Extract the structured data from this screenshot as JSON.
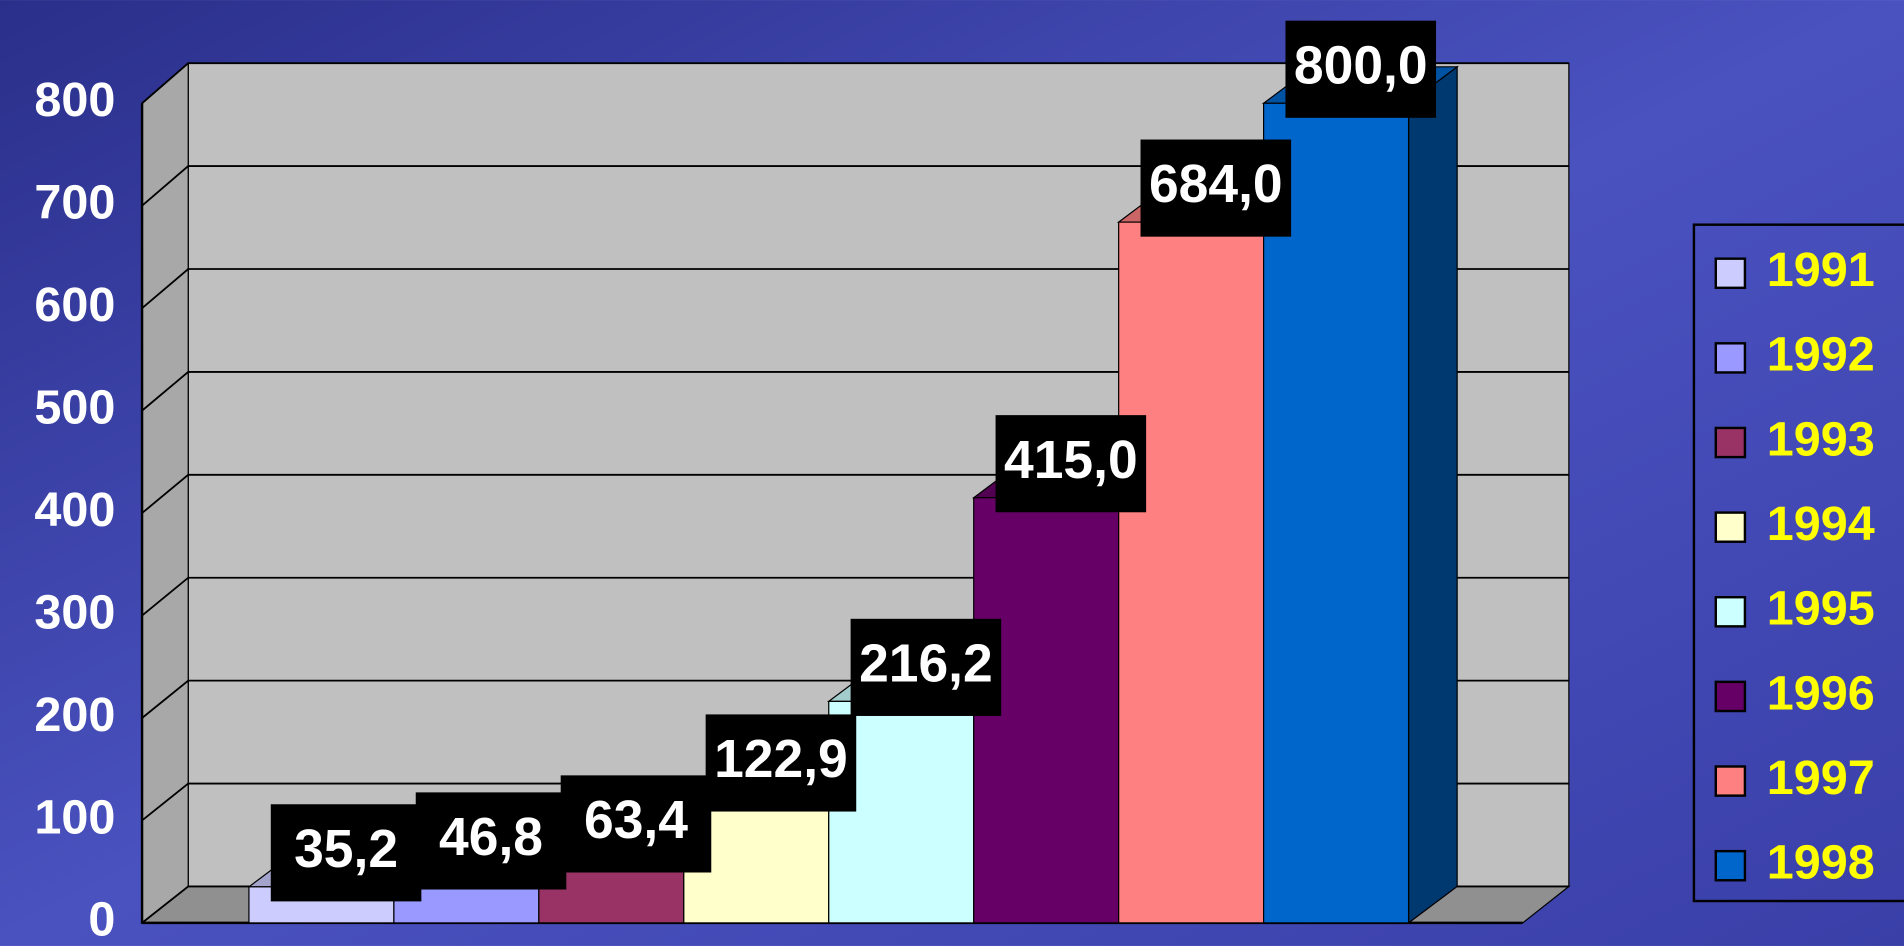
{
  "chart_data": {
    "type": "bar3d",
    "categories": [
      "1991",
      "1992",
      "1993",
      "1994",
      "1995",
      "1996",
      "1997",
      "1998"
    ],
    "values": [
      35.2,
      46.8,
      63.4,
      122.9,
      216.2,
      415.0,
      684.0,
      800.0
    ],
    "value_labels": [
      "35,2",
      "46,8",
      "63,4",
      "122,9",
      "216,2",
      "415,0",
      "684,0",
      "800,0"
    ],
    "colors": [
      "#ccccff",
      "#9999ff",
      "#993366",
      "#ffffcc",
      "#ccffff",
      "#660066",
      "#ff8080",
      "#0066cc"
    ],
    "ylim": [
      0,
      800
    ],
    "yticks": [
      0,
      100,
      200,
      300,
      400,
      500,
      600,
      700,
      800
    ],
    "grid": true,
    "legend": "right"
  }
}
